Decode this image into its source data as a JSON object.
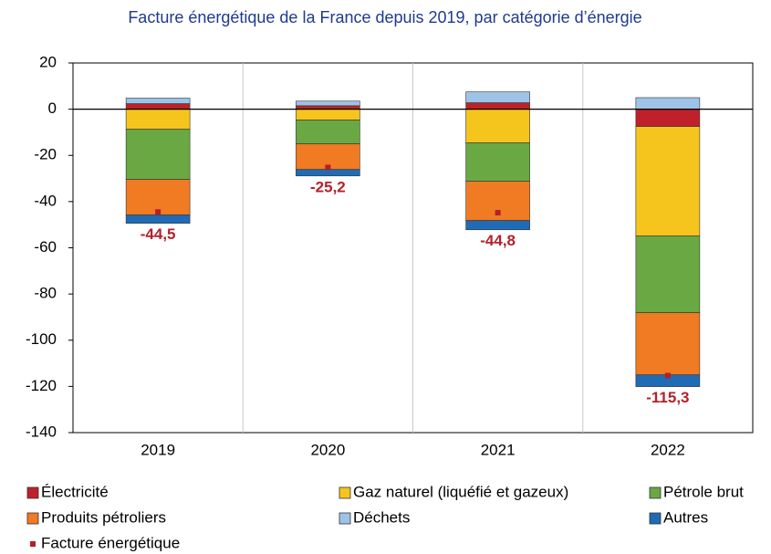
{
  "chart_data": {
    "type": "stacked_bar",
    "title": "Facture énergétique de la France depuis 2019, par catégorie d’énergie",
    "categories": [
      "2019",
      "2020",
      "2021",
      "2022"
    ],
    "series": [
      {
        "name": "Électricité",
        "color": "#c0202a",
        "values": [
          2.4,
          1.5,
          2.8,
          -7.5
        ]
      },
      {
        "name": "Gaz naturel (liquéfié et gazeux)",
        "color": "#f5c51e",
        "values": [
          -8.7,
          -4.7,
          -14.6,
          -47.4
        ]
      },
      {
        "name": "Pétrole brut",
        "color": "#6aa843",
        "values": [
          -21.7,
          -10.3,
          -16.6,
          -33.2
        ]
      },
      {
        "name": "Produits pétroliers",
        "color": "#f07b22",
        "values": [
          -15.4,
          -11.1,
          -17,
          -26.9
        ]
      },
      {
        "name": "Déchets",
        "color": "#9dc3e6",
        "values": [
          2.4,
          2,
          4.7,
          5
        ]
      },
      {
        "name": "Autres",
        "color": "#1f6bb5",
        "values": [
          -3.6,
          -2.8,
          -4,
          -5.1
        ]
      },
      {
        "name": "Facture énergétique",
        "color": "#b5202a",
        "type": "marker",
        "values": [
          -44.5,
          -25.2,
          -44.8,
          -115.3
        ],
        "value_labels": [
          "-44,5",
          "-25,2",
          "-44,8",
          "-115,3"
        ]
      }
    ],
    "ylim": [
      -140,
      20
    ],
    "yticks": [
      20,
      0,
      -20,
      -40,
      -60,
      -80,
      -100,
      -120,
      -140
    ],
    "grid": true
  }
}
